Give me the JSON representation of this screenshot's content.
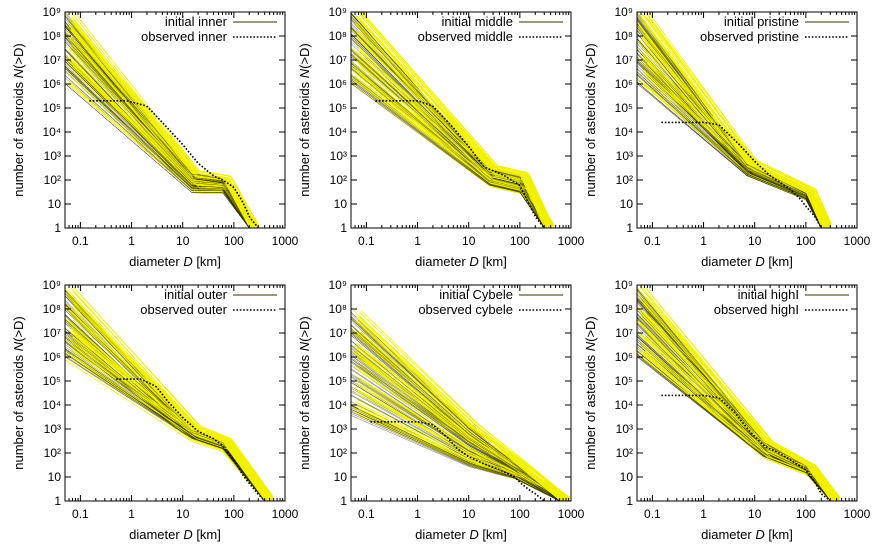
{
  "figure": {
    "x_tick_labels": [
      "0.1",
      "1",
      "10",
      "100",
      "1000"
    ],
    "y_tick_labels": [
      "1",
      "10",
      "10²",
      "10³",
      "10⁴",
      "10⁵",
      "10⁶",
      "10⁷",
      "10⁸",
      "10⁹"
    ],
    "xlabel_prefix": "diameter ",
    "xlabel_var": "D",
    "xlabel_suffix": " [km]",
    "ylabel_prefix": "number of asteroids ",
    "ylabel_var": "N",
    "ylabel_suffix": "(>D)"
  },
  "colors": {
    "initial": "#333300",
    "simulated": "#f0f000",
    "observed": "#000000"
  },
  "chart_data": [
    {
      "type": "line",
      "xscale": "log",
      "yscale": "log",
      "xlim": [
        0.05,
        1000
      ],
      "ylim": [
        1,
        1000000000.0
      ],
      "legend_initial": "initial inner",
      "legend_observed": "observed inner",
      "observed": {
        "x": [
          0.15,
          0.8,
          2,
          5,
          10,
          20,
          40,
          60,
          100,
          150,
          200,
          300
        ],
        "y": [
          200000,
          200000,
          120000,
          15000,
          3000,
          500,
          150,
          100,
          50,
          12,
          3,
          1
        ]
      },
      "initial_envelope": {
        "x": [
          0.05,
          15,
          60,
          200
        ],
        "y_high": [
          1000000000.0,
          200,
          120,
          1
        ],
        "y_low": [
          1000000,
          30,
          30,
          1
        ]
      }
    },
    {
      "type": "line",
      "xscale": "log",
      "yscale": "log",
      "xlim": [
        0.05,
        1000
      ],
      "ylim": [
        1,
        1000000000.0
      ],
      "legend_initial": "initial middle",
      "legend_observed": "observed middle",
      "observed": {
        "x": [
          0.15,
          1,
          2,
          5,
          10,
          20,
          50,
          100,
          150,
          200,
          300
        ],
        "y": [
          200000,
          200000,
          120000,
          15000,
          2500,
          350,
          150,
          60,
          10,
          3,
          1
        ]
      },
      "initial_envelope": {
        "x": [
          0.05,
          25,
          100,
          300
        ],
        "y_high": [
          1000000000.0,
          300,
          150,
          1
        ],
        "y_low": [
          1000000,
          60,
          30,
          1
        ]
      }
    },
    {
      "type": "line",
      "xscale": "log",
      "yscale": "log",
      "xlim": [
        0.05,
        1000
      ],
      "ylim": [
        1,
        1000000000.0
      ],
      "legend_initial": "initial pristine",
      "legend_observed": "observed pristine",
      "observed": {
        "x": [
          0.15,
          1,
          2,
          5,
          10,
          20,
          50,
          80,
          100,
          150,
          200
        ],
        "y": [
          25000,
          25000,
          20000,
          3000,
          600,
          150,
          40,
          15,
          8,
          3,
          1
        ]
      },
      "initial_envelope": {
        "x": [
          0.05,
          7,
          100,
          200
        ],
        "y_high": [
          1000000000.0,
          500,
          30,
          1
        ],
        "y_low": [
          1000000,
          150,
          15,
          1
        ]
      }
    },
    {
      "type": "line",
      "xscale": "log",
      "yscale": "log",
      "xlim": [
        0.05,
        1000
      ],
      "ylim": [
        1,
        1000000000.0
      ],
      "legend_initial": "initial outer",
      "legend_observed": "observed outer",
      "observed": {
        "x": [
          0.5,
          1.5,
          3,
          5,
          10,
          20,
          40,
          60,
          100,
          150,
          250,
          400
        ],
        "y": [
          120000,
          120000,
          60000,
          15000,
          3000,
          800,
          400,
          200,
          50,
          12,
          3,
          1
        ]
      },
      "initial_envelope": {
        "x": [
          0.05,
          15,
          60,
          400
        ],
        "y_high": [
          1000000000.0,
          1000,
          300,
          1
        ],
        "y_low": [
          1000000,
          400,
          150,
          1
        ]
      }
    },
    {
      "type": "line",
      "xscale": "log",
      "yscale": "log",
      "xlim": [
        0.05,
        1000
      ],
      "ylim": [
        1,
        1000000000.0
      ],
      "legend_initial": "initial Cybele",
      "legend_observed": "observed cybele",
      "observed": {
        "x": [
          0.12,
          1,
          2,
          4,
          6,
          10,
          20,
          40,
          80,
          100,
          150,
          200,
          300
        ],
        "y": [
          2000,
          2000,
          1500,
          400,
          150,
          70,
          35,
          20,
          10,
          6,
          3,
          2,
          1
        ]
      },
      "initial_envelope": {
        "x": [
          0.05,
          10,
          80,
          600
        ],
        "y_high": [
          100000000,
          1500,
          40,
          1
        ],
        "y_low": [
          3000,
          25,
          8,
          1
        ]
      }
    },
    {
      "type": "line",
      "xscale": "log",
      "yscale": "log",
      "xlim": [
        0.05,
        1000
      ],
      "ylim": [
        1,
        1000000000.0
      ],
      "legend_initial": "initial highI",
      "legend_observed": "observed highI",
      "observed": {
        "x": [
          0.15,
          1,
          2,
          4,
          8,
          15,
          30,
          60,
          100,
          150,
          200,
          300
        ],
        "y": [
          25000,
          25000,
          20000,
          5000,
          800,
          200,
          100,
          40,
          20,
          6,
          2,
          1
        ]
      },
      "initial_envelope": {
        "x": [
          0.05,
          15,
          100,
          300
        ],
        "y_high": [
          1000000000.0,
          300,
          30,
          1
        ],
        "y_low": [
          1000000,
          70,
          15,
          1
        ]
      }
    }
  ]
}
